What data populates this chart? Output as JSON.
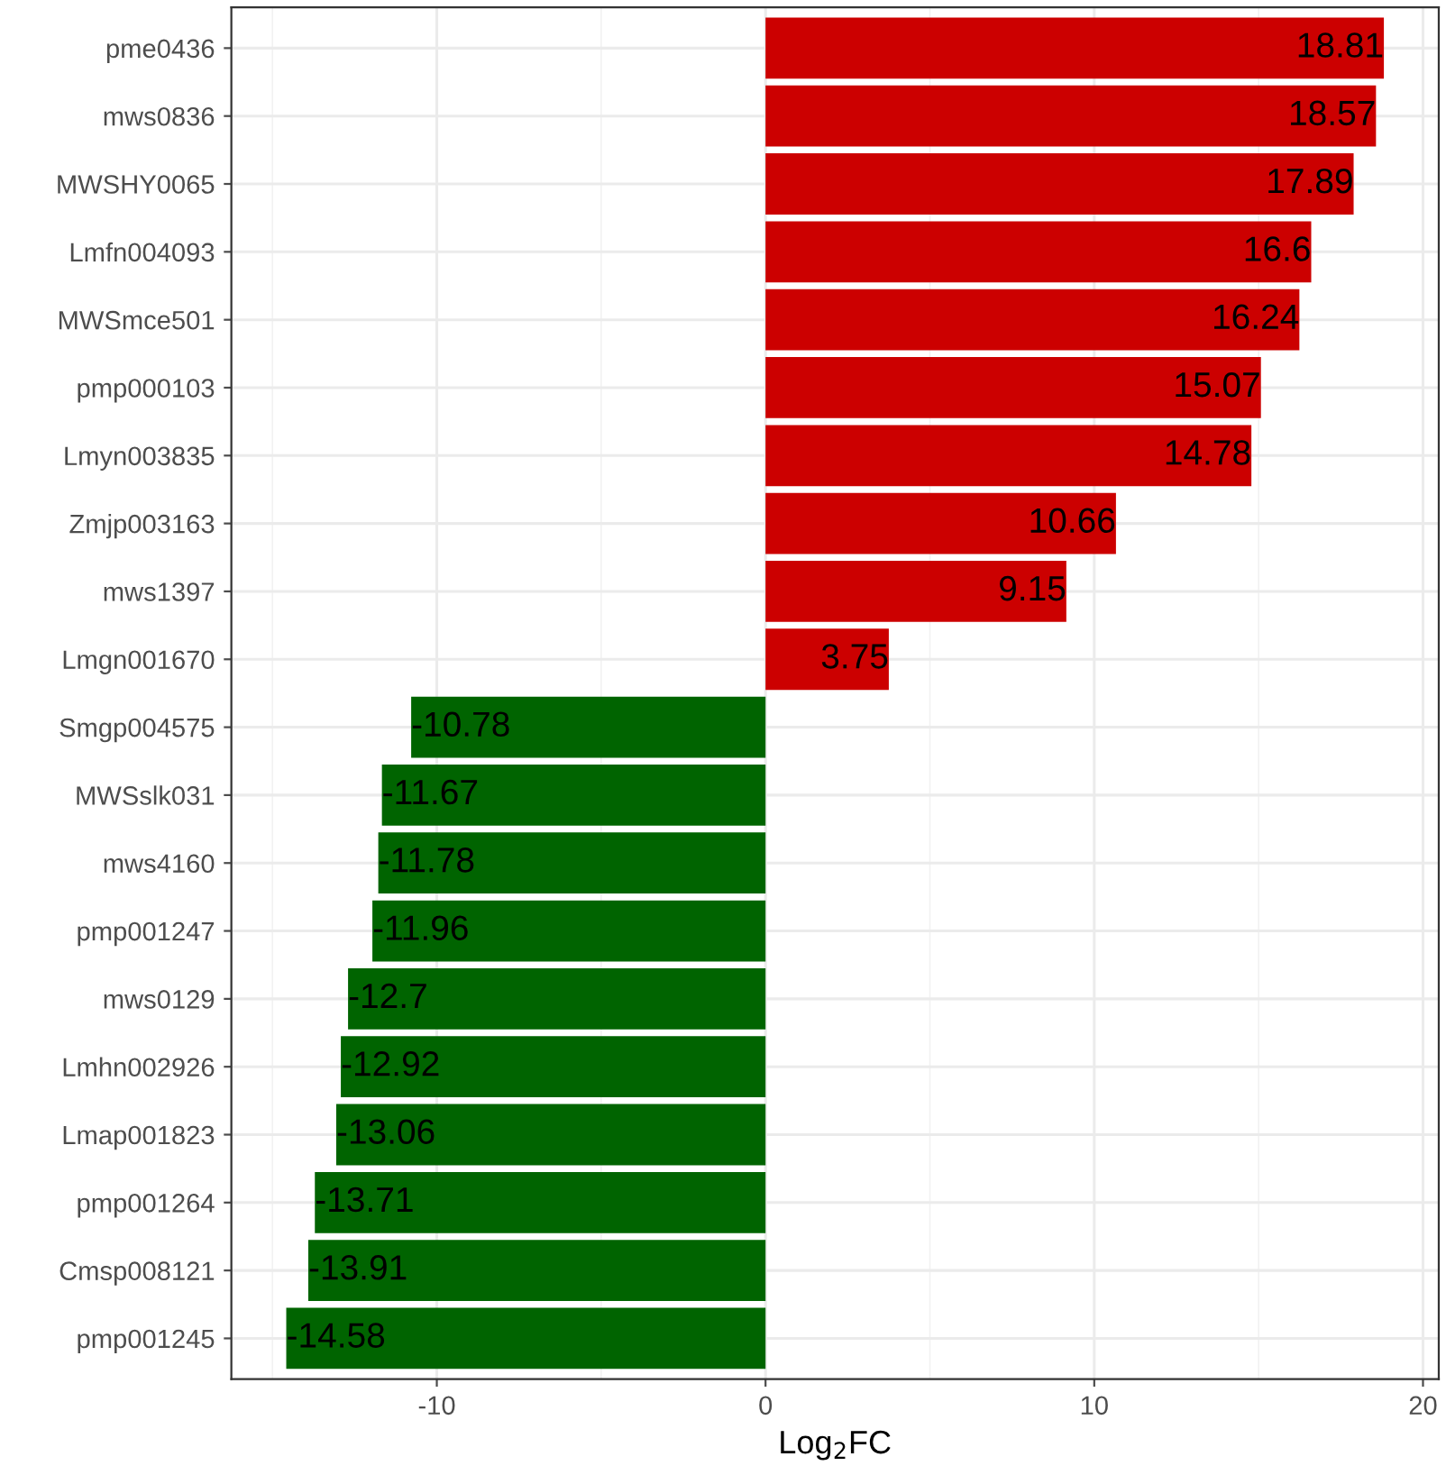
{
  "chart_data": {
    "type": "bar",
    "orientation": "horizontal",
    "xlabel": "Log$_{2}$FC",
    "categories": [
      "pme0436",
      "mws0836",
      "MWSHY0065",
      "Lmfn004093",
      "MWSmce501",
      "pmp000103",
      "Lmyn003835",
      "Zmjp003163",
      "mws1397",
      "Lmgn001670",
      "Smgp004575",
      "MWSslk031",
      "mws4160",
      "pmp001247",
      "mws0129",
      "Lmhn002926",
      "Lmap001823",
      "pmp001264",
      "Cmsp008121",
      "pmp001245"
    ],
    "values": [
      18.81,
      18.57,
      17.89,
      16.6,
      16.24,
      15.07,
      14.78,
      10.66,
      9.15,
      3.75,
      -10.78,
      -11.67,
      -11.78,
      -11.96,
      -12.7,
      -12.92,
      -13.06,
      -13.71,
      -13.91,
      -14.58
    ],
    "colors": [
      "#cc0000",
      "#cc0000",
      "#cc0000",
      "#cc0000",
      "#cc0000",
      "#cc0000",
      "#cc0000",
      "#cc0000",
      "#cc0000",
      "#cc0000",
      "#006400",
      "#006400",
      "#006400",
      "#006400",
      "#006400",
      "#006400",
      "#006400",
      "#006400",
      "#006400",
      "#006400"
    ],
    "xlim": [
      -16.25,
      20.48
    ],
    "xticks": [
      -10,
      0,
      10,
      20
    ],
    "grid": true,
    "data_labels": true,
    "legend": false
  }
}
